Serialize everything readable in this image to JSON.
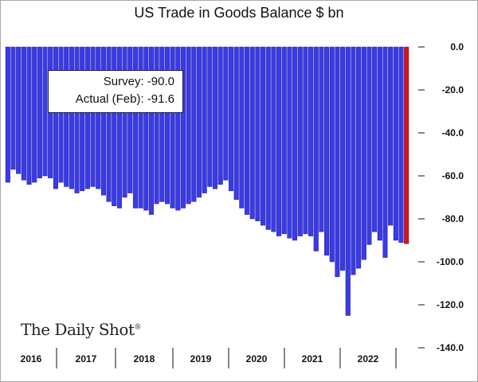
{
  "chart_data": {
    "type": "bar",
    "title": "US Trade in Goods Balance $ bn",
    "xlabel": "",
    "ylabel": "",
    "ylim": [
      -140,
      0
    ],
    "yticks": [
      "0.0",
      "-20.0",
      "-40.0",
      "-60.0",
      "-80.0",
      "-100.0",
      "-120.0",
      "-140.0"
    ],
    "year_labels": [
      "2016",
      "2017",
      "2018",
      "2019",
      "2020",
      "2021",
      "2022"
    ],
    "grid": false,
    "series": [
      {
        "values": [
          -63,
          -57,
          -59,
          -62,
          -64,
          -63,
          -61,
          -60,
          -61,
          -66,
          -63,
          -65,
          -66,
          -68,
          -67,
          -66,
          -65,
          -66,
          -69,
          -72,
          -74,
          -75,
          -70,
          -68,
          -75,
          -75,
          -76,
          -78,
          -73,
          -72,
          -73,
          -75,
          -76,
          -75,
          -73,
          -72,
          -70,
          -68,
          -65,
          -66,
          -64,
          -62,
          -67,
          -71,
          -75,
          -78,
          -80,
          -81,
          -83,
          -85,
          -86,
          -88,
          -87,
          -89,
          -90,
          -88,
          -87,
          -88,
          -95,
          -86,
          -97,
          -100,
          -107,
          -104,
          -125,
          -106,
          -103,
          -99,
          -92,
          -86,
          -90,
          -98,
          -83,
          -90,
          -91,
          -91.6
        ],
        "colors": {
          "default": "#3a3ae6",
          "highlight": "#e01010"
        }
      }
    ],
    "annotation": {
      "survey_label": "Survey:",
      "survey_value": "-90.0",
      "actual_label": "Actual (Feb):",
      "actual_value": "-91.6"
    }
  },
  "branding": {
    "logo_text": "The Daily Shot",
    "logo_mark": "®"
  }
}
